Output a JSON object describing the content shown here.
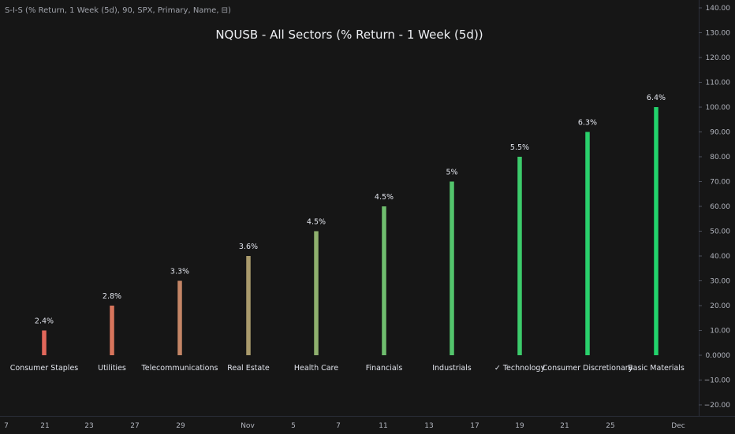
{
  "indicator": {
    "label": "S-I-S (% Return, 1 Week (5d), 90, SPX, Primary, Name, ⊟)"
  },
  "chart_data": {
    "type": "bar",
    "title": "NQUSB - All Sectors (% Return - 1 Week (5d))",
    "categories": [
      "Consumer Staples",
      "Utilities",
      "Telecommunications",
      "Real Estate",
      "Health Care",
      "Financials",
      "Industrials",
      "✓ Technology",
      "Consumer Discretionary",
      "Basic Materials"
    ],
    "values": [
      10,
      20,
      30,
      40,
      50,
      60,
      70,
      80,
      90,
      100
    ],
    "value_labels": [
      "2.4%",
      "2.8%",
      "3.3%",
      "3.6%",
      "4.5%",
      "4.5%",
      "5%",
      "5.5%",
      "6.3%",
      "6.4%"
    ],
    "colors": [
      "#e2675a",
      "#d8755c",
      "#c48566",
      "#a99a6c",
      "#8fb06e",
      "#6fbe6e",
      "#53c56c",
      "#3ccb6b",
      "#2ad06c",
      "#22d36c"
    ],
    "ylim": [
      -20,
      140
    ],
    "yticks": [
      "140.00",
      "130.00",
      "120.00",
      "110.00",
      "100.00",
      "90.00",
      "80.00",
      "70.00",
      "60.00",
      "50.00",
      "40.00",
      "30.00",
      "20.00",
      "10.00",
      "0.0000",
      "−10.00",
      "−20.00"
    ],
    "xticks": [
      "7",
      "21",
      "23",
      "27",
      "29",
      "Nov",
      "5",
      "7",
      "11",
      "13",
      "17",
      "19",
      "21",
      "25",
      "Dec"
    ],
    "grid": false
  }
}
